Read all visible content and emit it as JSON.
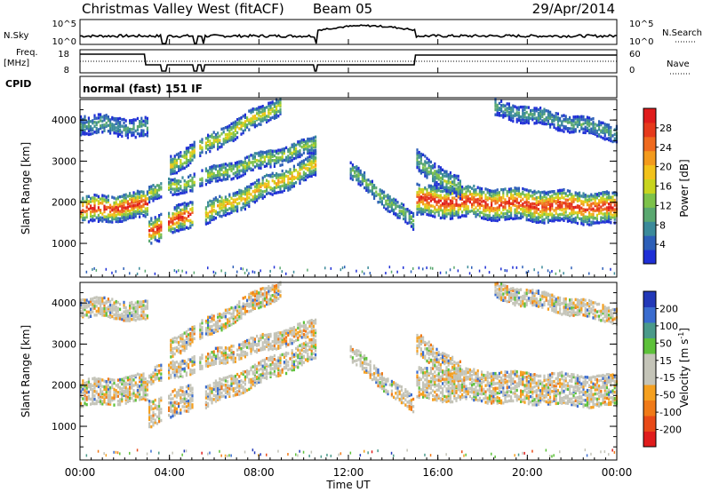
{
  "header": {
    "title": "Christmas Valley West (fitACF)",
    "beam": "Beam 05",
    "date": "29/Apr/2014"
  },
  "nsky_panel": {
    "left_label": "N.Sky",
    "right_label": "N.Search",
    "left_ticks": [
      "10^5",
      "10^0"
    ],
    "right_ticks": [
      "10^5",
      "10^0"
    ]
  },
  "freq_panel": {
    "left_label_1": "Freq.",
    "left_label_2": "[MHz]",
    "right_label": "Nave",
    "left_ticks": [
      "18",
      "8"
    ],
    "right_ticks": [
      "60",
      "0"
    ]
  },
  "cpid": {
    "label": "CPID",
    "value": "normal (fast) 151 IF"
  },
  "colors": {
    "power_scale": [
      "#1f2fd6",
      "#2d5fb8",
      "#3b8a9a",
      "#5aa870",
      "#7dc24a",
      "#c8d41e",
      "#f2c21a",
      "#f39a1c",
      "#ef6a1e",
      "#e63a1c",
      "#e01c1c"
    ],
    "velocity_scale": [
      "#2238b8",
      "#3a6ccf",
      "#4a9a8a",
      "#5dc13a",
      "#c4c4b8",
      "#c4c4b8",
      "#f5a020",
      "#f07a18",
      "#e84a18",
      "#e01c1c"
    ]
  },
  "chart_data": [
    {
      "type": "heatmap",
      "title": "Power",
      "ylabel": "Slant Range [km]",
      "yticks": [
        "4000",
        "3000",
        "2000",
        "1000"
      ],
      "ylim": [
        180,
        4500
      ],
      "xlim": [
        0,
        24
      ],
      "colorbar_label": "Power [dB]",
      "colorbar_ticks": [
        "28",
        "24",
        "20",
        "16",
        "12",
        "8",
        "4"
      ],
      "colorbar_range": [
        0,
        32
      ],
      "gaps_hours": [
        [
          3.65,
          3.85
        ],
        [
          5.1,
          5.25
        ],
        [
          5.45,
          5.55
        ],
        [
          10.5,
          10.6
        ]
      ]
    },
    {
      "type": "heatmap",
      "title": "Velocity",
      "ylabel": "Slant Range [km]",
      "yticks": [
        "4000",
        "3000",
        "2000",
        "1000"
      ],
      "ylim": [
        180,
        4500
      ],
      "xlim": [
        0,
        24
      ],
      "colorbar_label": "Velocity [m s",
      "colorbar_label_sup": "-1",
      "colorbar_label_end": "]",
      "colorbar_ticks": [
        "200",
        "100",
        "50",
        "15",
        "-15",
        "-50",
        "-100",
        "-200"
      ]
    }
  ],
  "time_axis": {
    "label": "Time UT",
    "ticks": [
      "00:00",
      "04:00",
      "08:00",
      "12:00",
      "16:00",
      "20:00",
      "00:00"
    ]
  }
}
